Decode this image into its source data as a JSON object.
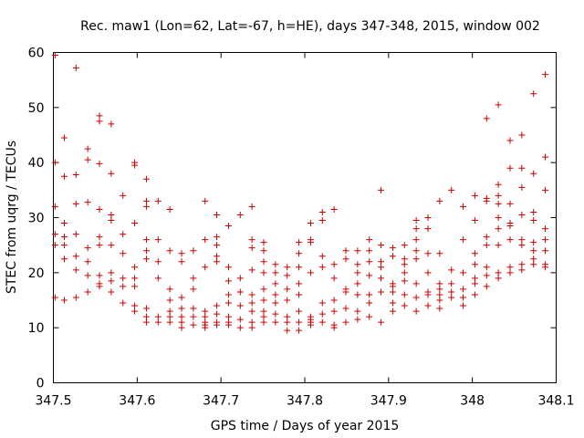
{
  "chart_data": {
    "type": "scatter",
    "title": "Rec. maw1 (Lon=62, Lat=-67, h=HE), days 347-348, 2015, window 002",
    "xlabel": "GPS time / Days of year 2015",
    "ylabel": "STEC from uqrg / TECUs",
    "xlim": [
      347.5,
      348.1
    ],
    "ylim": [
      0,
      60
    ],
    "xticks": [
      "347.5",
      "347.6",
      "347.7",
      "347.8",
      "347.9",
      "348",
      "348.1"
    ],
    "yticks": [
      "0",
      "10",
      "20",
      "30",
      "40",
      "50",
      "60"
    ],
    "marker": "+",
    "color": "#cc0000",
    "grid": false,
    "points": [
      [
        347.502,
        59.5
      ],
      [
        347.502,
        40.0
      ],
      [
        347.502,
        32.0
      ],
      [
        347.502,
        27.0
      ],
      [
        347.502,
        25.0
      ],
      [
        347.502,
        15.5
      ],
      [
        347.513,
        44.5
      ],
      [
        347.513,
        37.5
      ],
      [
        347.513,
        29.0
      ],
      [
        347.513,
        26.5
      ],
      [
        347.513,
        25.0
      ],
      [
        347.513,
        22.5
      ],
      [
        347.513,
        15.0
      ],
      [
        347.527,
        57.2
      ],
      [
        347.527,
        37.8
      ],
      [
        347.527,
        32.5
      ],
      [
        347.527,
        27.0
      ],
      [
        347.527,
        23.0
      ],
      [
        347.527,
        20.5
      ],
      [
        347.527,
        15.5
      ],
      [
        347.541,
        42.5
      ],
      [
        347.541,
        40.5
      ],
      [
        347.541,
        32.8
      ],
      [
        347.541,
        24.5
      ],
      [
        347.541,
        22.0
      ],
      [
        347.541,
        19.5
      ],
      [
        347.541,
        16.5
      ],
      [
        347.555,
        48.5
      ],
      [
        347.555,
        47.5
      ],
      [
        347.555,
        39.8
      ],
      [
        347.555,
        31.5
      ],
      [
        347.555,
        26.5
      ],
      [
        347.555,
        25.0
      ],
      [
        347.555,
        19.5
      ],
      [
        347.555,
        18.0
      ],
      [
        347.555,
        17.5
      ],
      [
        347.569,
        47.0
      ],
      [
        347.569,
        38.0
      ],
      [
        347.569,
        30.5
      ],
      [
        347.569,
        29.5
      ],
      [
        347.569,
        25.0
      ],
      [
        347.569,
        20.0
      ],
      [
        347.569,
        18.5
      ],
      [
        347.569,
        16.5
      ],
      [
        347.583,
        34.0
      ],
      [
        347.583,
        27.0
      ],
      [
        347.583,
        23.5
      ],
      [
        347.583,
        19.0
      ],
      [
        347.583,
        17.5
      ],
      [
        347.583,
        14.5
      ],
      [
        347.597,
        40.0
      ],
      [
        347.597,
        39.5
      ],
      [
        347.597,
        29.0
      ],
      [
        347.597,
        21.0
      ],
      [
        347.597,
        19.0
      ],
      [
        347.597,
        17.5
      ],
      [
        347.597,
        14.0
      ],
      [
        347.597,
        13.0
      ],
      [
        347.611,
        37.0
      ],
      [
        347.611,
        33.0
      ],
      [
        347.611,
        32.0
      ],
      [
        347.611,
        26.0
      ],
      [
        347.611,
        24.0
      ],
      [
        347.611,
        22.5
      ],
      [
        347.611,
        13.5
      ],
      [
        347.611,
        12.0
      ],
      [
        347.611,
        11.0
      ],
      [
        347.625,
        33.0
      ],
      [
        347.625,
        26.0
      ],
      [
        347.625,
        22.0
      ],
      [
        347.625,
        19.0
      ],
      [
        347.625,
        12.0
      ],
      [
        347.625,
        11.0
      ],
      [
        347.639,
        31.5
      ],
      [
        347.639,
        24.0
      ],
      [
        347.639,
        17.0
      ],
      [
        347.639,
        15.0
      ],
      [
        347.639,
        13.0
      ],
      [
        347.639,
        12.0
      ],
      [
        347.639,
        11.0
      ],
      [
        347.653,
        23.5
      ],
      [
        347.653,
        22.0
      ],
      [
        347.653,
        15.5
      ],
      [
        347.653,
        13.5
      ],
      [
        347.653,
        12.0
      ],
      [
        347.653,
        11.0
      ],
      [
        347.653,
        10.0
      ],
      [
        347.667,
        24.0
      ],
      [
        347.667,
        19.0
      ],
      [
        347.667,
        17.0
      ],
      [
        347.667,
        13.5
      ],
      [
        347.667,
        12.0
      ],
      [
        347.667,
        10.5
      ],
      [
        347.681,
        33.0
      ],
      [
        347.681,
        26.0
      ],
      [
        347.681,
        21.0
      ],
      [
        347.681,
        13.0
      ],
      [
        347.681,
        12.0
      ],
      [
        347.681,
        11.0
      ],
      [
        347.681,
        10.5
      ],
      [
        347.681,
        10.0
      ],
      [
        347.695,
        30.5
      ],
      [
        347.695,
        26.5
      ],
      [
        347.695,
        25.0
      ],
      [
        347.695,
        23.0
      ],
      [
        347.695,
        22.0
      ],
      [
        347.695,
        14.0
      ],
      [
        347.695,
        12.5
      ],
      [
        347.695,
        11.0
      ],
      [
        347.695,
        10.5
      ],
      [
        347.709,
        28.5
      ],
      [
        347.709,
        21.0
      ],
      [
        347.709,
        18.5
      ],
      [
        347.709,
        16.0
      ],
      [
        347.709,
        14.5
      ],
      [
        347.709,
        12.0
      ],
      [
        347.709,
        11.0
      ],
      [
        347.709,
        10.5
      ],
      [
        347.723,
        30.5
      ],
      [
        347.723,
        19.0
      ],
      [
        347.723,
        16.5
      ],
      [
        347.723,
        14.0
      ],
      [
        347.723,
        11.5
      ],
      [
        347.723,
        10.0
      ],
      [
        347.737,
        32.0
      ],
      [
        347.737,
        26.0
      ],
      [
        347.737,
        24.5
      ],
      [
        347.737,
        20.5
      ],
      [
        347.737,
        16.0
      ],
      [
        347.737,
        14.5
      ],
      [
        347.737,
        13.0
      ],
      [
        347.737,
        11.0
      ],
      [
        347.737,
        10.0
      ],
      [
        347.751,
        25.5
      ],
      [
        347.751,
        24.0
      ],
      [
        347.751,
        22.0
      ],
      [
        347.751,
        20.0
      ],
      [
        347.751,
        17.0
      ],
      [
        347.751,
        15.0
      ],
      [
        347.751,
        13.0
      ],
      [
        347.751,
        12.0
      ],
      [
        347.751,
        11.0
      ],
      [
        347.765,
        21.5
      ],
      [
        347.765,
        20.0
      ],
      [
        347.765,
        18.0
      ],
      [
        347.765,
        16.0
      ],
      [
        347.765,
        14.5
      ],
      [
        347.765,
        12.5
      ],
      [
        347.765,
        11.0
      ],
      [
        347.779,
        21.0
      ],
      [
        347.779,
        19.5
      ],
      [
        347.779,
        17.0
      ],
      [
        347.779,
        15.0
      ],
      [
        347.779,
        12.0
      ],
      [
        347.779,
        11.0
      ],
      [
        347.779,
        9.5
      ],
      [
        347.793,
        25.5
      ],
      [
        347.793,
        23.5
      ],
      [
        347.793,
        21.0
      ],
      [
        347.793,
        18.0
      ],
      [
        347.793,
        16.0
      ],
      [
        347.793,
        13.0
      ],
      [
        347.793,
        11.0
      ],
      [
        347.793,
        9.5
      ],
      [
        347.807,
        29.0
      ],
      [
        347.807,
        26.0
      ],
      [
        347.807,
        25.5
      ],
      [
        347.807,
        20.0
      ],
      [
        347.807,
        12.0
      ],
      [
        347.807,
        11.5
      ],
      [
        347.807,
        11.0
      ],
      [
        347.807,
        10.5
      ],
      [
        347.821,
        31.0
      ],
      [
        347.821,
        29.5
      ],
      [
        347.821,
        23.0
      ],
      [
        347.821,
        21.0
      ],
      [
        347.821,
        14.5
      ],
      [
        347.821,
        12.5
      ],
      [
        347.821,
        11.0
      ],
      [
        347.835,
        31.5
      ],
      [
        347.835,
        21.5
      ],
      [
        347.835,
        19.0
      ],
      [
        347.835,
        15.0
      ],
      [
        347.835,
        13.0
      ],
      [
        347.835,
        10.5
      ],
      [
        347.835,
        10.0
      ],
      [
        347.849,
        24.0
      ],
      [
        347.849,
        22.5
      ],
      [
        347.849,
        17.0
      ],
      [
        347.849,
        16.5
      ],
      [
        347.849,
        13.5
      ],
      [
        347.849,
        11.0
      ],
      [
        347.863,
        24.0
      ],
      [
        347.863,
        21.5
      ],
      [
        347.863,
        20.0
      ],
      [
        347.863,
        18.0
      ],
      [
        347.863,
        16.0
      ],
      [
        347.863,
        13.0
      ],
      [
        347.863,
        11.5
      ],
      [
        347.877,
        26.0
      ],
      [
        347.877,
        24.0
      ],
      [
        347.877,
        22.0
      ],
      [
        347.877,
        19.5
      ],
      [
        347.877,
        16.0
      ],
      [
        347.877,
        14.5
      ],
      [
        347.877,
        12.0
      ],
      [
        347.891,
        35.0
      ],
      [
        347.891,
        25.0
      ],
      [
        347.891,
        22.0
      ],
      [
        347.891,
        21.0
      ],
      [
        347.891,
        19.0
      ],
      [
        347.891,
        16.5
      ],
      [
        347.891,
        11.0
      ],
      [
        347.905,
        24.5
      ],
      [
        347.905,
        23.0
      ],
      [
        347.905,
        18.0
      ],
      [
        347.905,
        17.5
      ],
      [
        347.905,
        16.5
      ],
      [
        347.905,
        14.5
      ],
      [
        347.905,
        13.0
      ],
      [
        347.919,
        25.0
      ],
      [
        347.919,
        22.5
      ],
      [
        347.919,
        21.5
      ],
      [
        347.919,
        20.0
      ],
      [
        347.919,
        18.5
      ],
      [
        347.919,
        16.0
      ],
      [
        347.919,
        14.0
      ],
      [
        347.933,
        29.5
      ],
      [
        347.933,
        28.0
      ],
      [
        347.933,
        26.0
      ],
      [
        347.933,
        24.0
      ],
      [
        347.933,
        22.5
      ],
      [
        347.933,
        18.0
      ],
      [
        347.933,
        15.5
      ],
      [
        347.933,
        13.0
      ],
      [
        347.947,
        30.0
      ],
      [
        347.947,
        28.0
      ],
      [
        347.947,
        23.5
      ],
      [
        347.947,
        20.0
      ],
      [
        347.947,
        16.5
      ],
      [
        347.947,
        16.0
      ],
      [
        347.947,
        14.0
      ],
      [
        347.961,
        33.0
      ],
      [
        347.961,
        23.5
      ],
      [
        347.961,
        18.0
      ],
      [
        347.961,
        17.0
      ],
      [
        347.961,
        16.0
      ],
      [
        347.961,
        15.0
      ],
      [
        347.961,
        13.5
      ],
      [
        347.975,
        35.0
      ],
      [
        347.975,
        20.5
      ],
      [
        347.975,
        18.0
      ],
      [
        347.975,
        16.5
      ],
      [
        347.975,
        15.5
      ],
      [
        347.989,
        32.0
      ],
      [
        347.989,
        26.0
      ],
      [
        347.989,
        20.0
      ],
      [
        347.989,
        17.0
      ],
      [
        347.989,
        15.5
      ],
      [
        347.989,
        14.0
      ],
      [
        348.003,
        34.0
      ],
      [
        348.003,
        29.5
      ],
      [
        348.003,
        23.5
      ],
      [
        348.003,
        21.5
      ],
      [
        348.003,
        19.0
      ],
      [
        348.003,
        18.0
      ],
      [
        348.003,
        16.0
      ],
      [
        348.017,
        48.0
      ],
      [
        348.017,
        33.5
      ],
      [
        348.017,
        33.0
      ],
      [
        348.017,
        26.5
      ],
      [
        348.017,
        25.0
      ],
      [
        348.017,
        21.0
      ],
      [
        348.017,
        19.5
      ],
      [
        348.017,
        17.5
      ],
      [
        348.031,
        50.5
      ],
      [
        348.031,
        36.0
      ],
      [
        348.031,
        34.0
      ],
      [
        348.031,
        32.5
      ],
      [
        348.031,
        30.0
      ],
      [
        348.031,
        28.0
      ],
      [
        348.031,
        25.0
      ],
      [
        348.031,
        20.0
      ],
      [
        348.031,
        19.0
      ],
      [
        348.045,
        44.0
      ],
      [
        348.045,
        39.0
      ],
      [
        348.045,
        32.5
      ],
      [
        348.045,
        29.0
      ],
      [
        348.045,
        28.5
      ],
      [
        348.045,
        26.0
      ],
      [
        348.045,
        21.0
      ],
      [
        348.045,
        20.0
      ],
      [
        348.059,
        45.0
      ],
      [
        348.059,
        39.0
      ],
      [
        348.059,
        35.5
      ],
      [
        348.059,
        30.5
      ],
      [
        348.059,
        26.0
      ],
      [
        348.059,
        25.0
      ],
      [
        348.059,
        21.5
      ],
      [
        348.059,
        20.5
      ],
      [
        348.073,
        52.5
      ],
      [
        348.073,
        38.0
      ],
      [
        348.073,
        31.0
      ],
      [
        348.073,
        29.5
      ],
      [
        348.073,
        25.5
      ],
      [
        348.073,
        24.0
      ],
      [
        348.073,
        22.5
      ],
      [
        348.073,
        21.5
      ],
      [
        348.087,
        56.0
      ],
      [
        348.087,
        41.0
      ],
      [
        348.087,
        35.0
      ],
      [
        348.087,
        28.0
      ],
      [
        348.087,
        26.0
      ],
      [
        348.087,
        24.0
      ],
      [
        348.087,
        21.5
      ],
      [
        348.087,
        21.0
      ]
    ]
  }
}
